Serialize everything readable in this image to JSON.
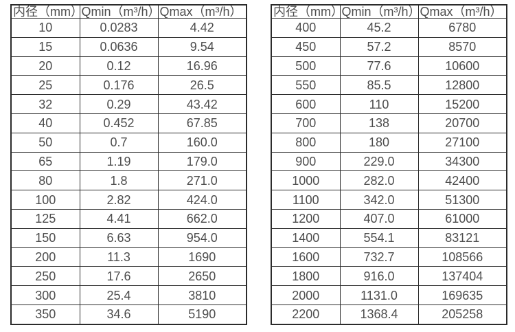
{
  "colors": {
    "background": "#ffffff",
    "table_border": "#2b2b2b",
    "text": "#4d4d4d"
  },
  "chart_data": [
    {
      "type": "table",
      "title": "",
      "columns": [
        "内径（mm）",
        "Qmin（m³/h）",
        "Qmax（m³/h）"
      ],
      "rows": [
        [
          "10",
          "0.0283",
          "4.42"
        ],
        [
          "15",
          "0.0636",
          "9.54"
        ],
        [
          "20",
          "0.12",
          "16.96"
        ],
        [
          "25",
          "0.176",
          "26.5"
        ],
        [
          "32",
          "0.29",
          "43.42"
        ],
        [
          "40",
          "0.452",
          "67.85"
        ],
        [
          "50",
          "0.7",
          "160.0"
        ],
        [
          "65",
          "1.19",
          "179.0"
        ],
        [
          "80",
          "1.8",
          "271.0"
        ],
        [
          "100",
          "2.82",
          "424.0"
        ],
        [
          "125",
          "4.41",
          "662.0"
        ],
        [
          "150",
          "6.63",
          "954.0"
        ],
        [
          "200",
          "11.3",
          "1690"
        ],
        [
          "250",
          "17.6",
          "2650"
        ],
        [
          "300",
          "25.4",
          "3810"
        ],
        [
          "350",
          "34.6",
          "5190"
        ]
      ]
    },
    {
      "type": "table",
      "title": "",
      "columns": [
        "内径（mm）",
        "Qmin（m³/h）",
        "Qmax（m³/h）"
      ],
      "rows": [
        [
          "400",
          "45.2",
          "6780"
        ],
        [
          "450",
          "57.2",
          "8570"
        ],
        [
          "500",
          "77.6",
          "10600"
        ],
        [
          "550",
          "85.5",
          "12800"
        ],
        [
          "600",
          "110",
          "15200"
        ],
        [
          "700",
          "138",
          "20700"
        ],
        [
          "800",
          "180",
          "27100"
        ],
        [
          "900",
          "229.0",
          "34300"
        ],
        [
          "1000",
          "282.0",
          "42400"
        ],
        [
          "1100",
          "342.0",
          "51300"
        ],
        [
          "1200",
          "407.0",
          "61000"
        ],
        [
          "1400",
          "554.1",
          "83121"
        ],
        [
          "1600",
          "732.7",
          "108566"
        ],
        [
          "1800",
          "916.0",
          "137404"
        ],
        [
          "2000",
          "1131.0",
          "169635"
        ],
        [
          "2200",
          "1368.4",
          "205258"
        ]
      ]
    }
  ]
}
